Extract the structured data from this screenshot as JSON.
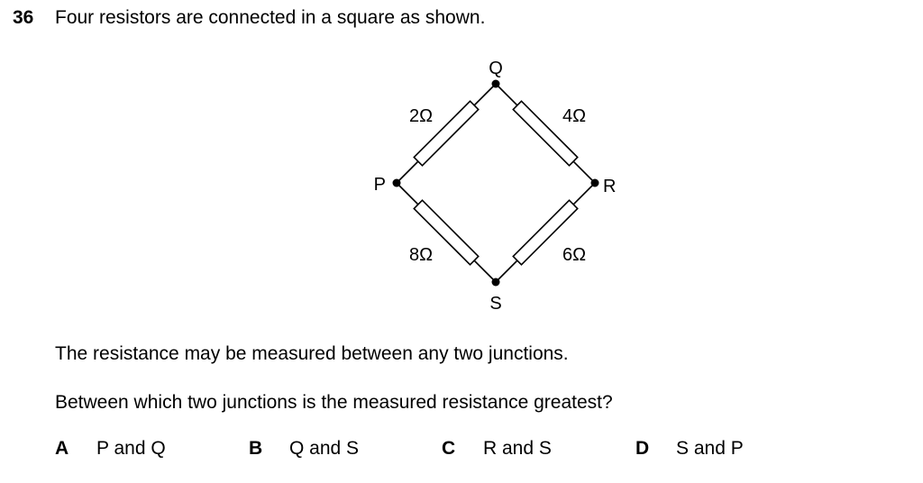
{
  "question": {
    "number": "36",
    "text": "Four resistors are connected in a square as shown.",
    "statement": "The resistance may be measured between any two junctions.",
    "prompt": "Between which two junctions is the measured resistance greatest?"
  },
  "diagram": {
    "junctions": {
      "top": "Q",
      "left": "P",
      "right": "R",
      "bottom": "S"
    },
    "resistors": {
      "PQ": "2Ω",
      "QR": "4Ω",
      "PS": "8Ω",
      "SR": "6Ω"
    }
  },
  "options": [
    {
      "letter": "A",
      "text": "P and Q"
    },
    {
      "letter": "B",
      "text": "Q and S"
    },
    {
      "letter": "C",
      "text": "R and S"
    },
    {
      "letter": "D",
      "text": "S and P"
    }
  ]
}
